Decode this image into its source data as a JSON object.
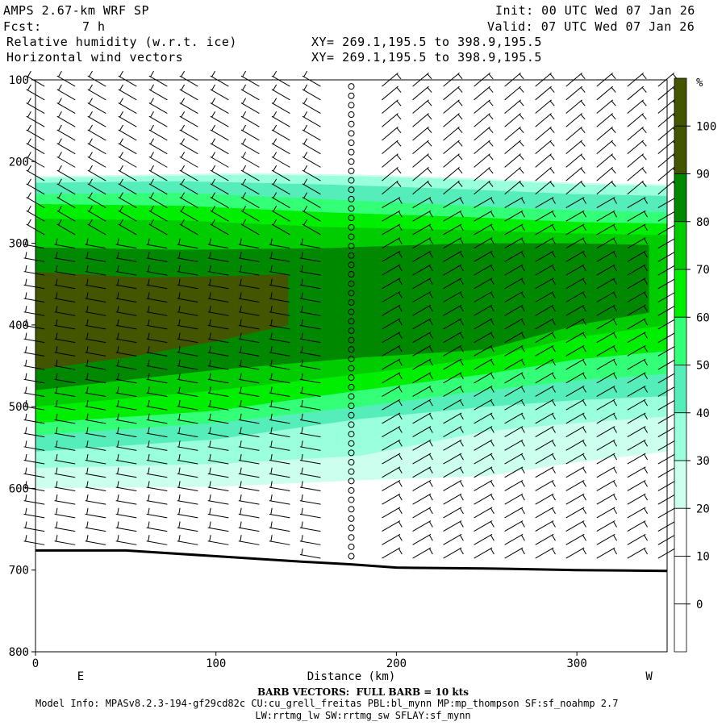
{
  "header": {
    "model": "AMPS 2.67-km WRF SP",
    "fcst_label": "Fcst:",
    "fcst_value": "7 h",
    "field1": "Relative humidity (w.r.t. ice)",
    "field2": "Horizontal wind vectors",
    "init": "Init: 00 UTC Wed 07 Jan 26",
    "valid": "Valid: 07 UTC Wed 07 Jan 26",
    "xy1": "XY= 269.1,195.5 to 398.9,195.5",
    "xy2": "XY= 269.1,195.5 to 398.9,195.5"
  },
  "footer": {
    "barb_note": "BARB VECTORS:  FULL BARB = 10 kts",
    "model_info": "Model Info: MPASv8.2.3-194-gf29cd82c CU:cu_grell_freitas PBL:bl_mynn MP:mp_thompson SF:sf_noahmp 2.7",
    "model_info2": "LW:rrtmg_lw SW:rrtmg_sw SFLAY:sf_mynn"
  },
  "chart_data": {
    "type": "heatmap",
    "title": "Relative humidity (w.r.t. ice)",
    "xlabel": "Distance (km)",
    "ylabel": "",
    "x_end_labels": [
      "E",
      "W"
    ],
    "xlim": [
      0,
      350
    ],
    "ylim": [
      800,
      100
    ],
    "x_ticks": [
      0,
      100,
      200,
      300
    ],
    "y_ticks": [
      100,
      200,
      300,
      400,
      500,
      600,
      700,
      800
    ],
    "colorbar": {
      "unit": "%",
      "levels": [
        0,
        10,
        20,
        30,
        40,
        50,
        60,
        70,
        80,
        90,
        100
      ],
      "colors": [
        "#ffffff",
        "#ffffff",
        "#ffffff",
        "#ccffee",
        "#99ffdd",
        "#55eebb",
        "#33ff77",
        "#00ee00",
        "#00cc00",
        "#008800",
        "#445500"
      ]
    },
    "rh_layers": [
      {
        "level": 30,
        "top": [
          [
            0,
            218
          ],
          [
            60,
            216
          ],
          [
            120,
            214
          ],
          [
            180,
            216
          ],
          [
            240,
            220
          ],
          [
            300,
            226
          ],
          [
            350,
            228
          ]
        ],
        "bottom": [
          [
            0,
            600
          ],
          [
            100,
            598
          ],
          [
            180,
            590
          ],
          [
            250,
            585
          ],
          [
            300,
            568
          ],
          [
            350,
            555
          ]
        ]
      },
      {
        "level": 40,
        "top": [
          [
            0,
            220
          ],
          [
            60,
            218
          ],
          [
            120,
            216
          ],
          [
            180,
            218
          ],
          [
            240,
            222
          ],
          [
            300,
            228
          ],
          [
            350,
            230
          ]
        ],
        "bottom": [
          [
            0,
            575
          ],
          [
            100,
            570
          ],
          [
            180,
            560
          ],
          [
            250,
            530
          ],
          [
            300,
            520
          ],
          [
            350,
            512
          ]
        ]
      },
      {
        "level": 50,
        "top": [
          [
            0,
            226
          ],
          [
            80,
            224
          ],
          [
            160,
            228
          ],
          [
            240,
            234
          ],
          [
            300,
            240
          ],
          [
            350,
            242
          ]
        ],
        "bottom": [
          [
            0,
            555
          ],
          [
            100,
            540
          ],
          [
            180,
            515
          ],
          [
            250,
            500
          ],
          [
            300,
            492
          ],
          [
            350,
            487
          ]
        ]
      },
      {
        "level": 60,
        "top": [
          [
            0,
            240
          ],
          [
            80,
            238
          ],
          [
            160,
            246
          ],
          [
            240,
            254
          ],
          [
            300,
            260
          ],
          [
            350,
            262
          ]
        ],
        "bottom": [
          [
            0,
            535
          ],
          [
            100,
            520
          ],
          [
            180,
            500
          ],
          [
            250,
            480
          ],
          [
            300,
            468
          ],
          [
            350,
            460
          ]
        ]
      },
      {
        "level": 70,
        "top": [
          [
            0,
            252
          ],
          [
            80,
            254
          ],
          [
            160,
            262
          ],
          [
            240,
            268
          ],
          [
            300,
            274
          ],
          [
            350,
            276
          ]
        ],
        "bottom": [
          [
            0,
            520
          ],
          [
            100,
            505
          ],
          [
            180,
            480
          ],
          [
            250,
            460
          ],
          [
            300,
            442
          ],
          [
            350,
            432
          ]
        ]
      },
      {
        "level": 80,
        "top": [
          [
            0,
            270
          ],
          [
            80,
            272
          ],
          [
            160,
            280
          ],
          [
            240,
            284
          ],
          [
            300,
            288
          ],
          [
            350,
            290
          ]
        ],
        "bottom": [
          [
            0,
            500
          ],
          [
            100,
            480
          ],
          [
            180,
            460
          ],
          [
            250,
            440
          ],
          [
            300,
            415
          ],
          [
            350,
            400
          ]
        ]
      },
      {
        "level": 90,
        "top": [
          [
            0,
            305
          ],
          [
            80,
            308
          ],
          [
            160,
            306
          ],
          [
            240,
            300
          ],
          [
            300,
            300
          ],
          [
            340,
            302
          ]
        ],
        "bottom": [
          [
            0,
            480
          ],
          [
            100,
            455
          ],
          [
            180,
            440
          ],
          [
            250,
            430
          ],
          [
            300,
            400
          ],
          [
            340,
            385
          ]
        ]
      },
      {
        "level": 100,
        "top": [
          [
            0,
            335
          ],
          [
            60,
            342
          ],
          [
            110,
            340
          ],
          [
            140,
            338
          ]
        ],
        "bottom": [
          [
            0,
            455
          ],
          [
            50,
            440
          ],
          [
            100,
            420
          ],
          [
            140,
            400
          ]
        ]
      }
    ],
    "terrain_hpa": [
      [
        0,
        676
      ],
      [
        50,
        676
      ],
      [
        100,
        683
      ],
      [
        150,
        690
      ],
      [
        175,
        693
      ],
      [
        200,
        697
      ],
      [
        250,
        698
      ],
      [
        300,
        700
      ],
      [
        350,
        701
      ]
    ]
  }
}
